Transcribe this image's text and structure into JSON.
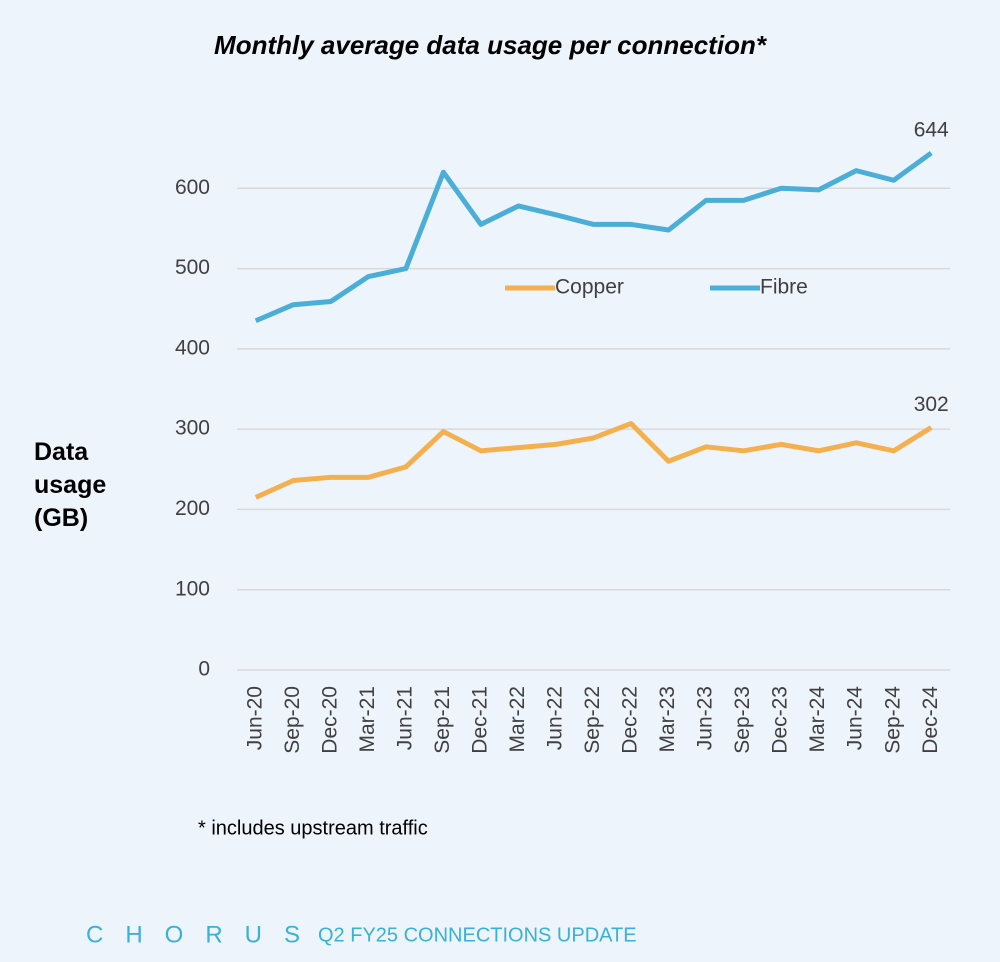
{
  "chart_data": {
    "type": "line",
    "title": "Monthly average data usage per connection*",
    "y_label": "Data usage (GB)",
    "categories": [
      "Jun-20",
      "Sep-20",
      "Dec-20",
      "Mar-21",
      "Jun-21",
      "Sep-21",
      "Dec-21",
      "Mar-22",
      "Jun-22",
      "Sep-22",
      "Dec-22",
      "Mar-23",
      "Jun-23",
      "Sep-23",
      "Dec-23",
      "Mar-24",
      "Jun-24",
      "Sep-24",
      "Dec-24"
    ],
    "series": [
      {
        "name": "Copper",
        "color": "#f4b04f",
        "values": [
          215,
          236,
          240,
          240,
          253,
          297,
          273,
          277,
          281,
          289,
          307,
          260,
          278,
          273,
          281,
          273,
          283,
          273,
          302
        ]
      },
      {
        "name": "Fibre",
        "color": "#4aaed9",
        "values": [
          435,
          455,
          459,
          490,
          500,
          620,
          555,
          578,
          567,
          555,
          555,
          548,
          585,
          585,
          600,
          598,
          622,
          610,
          644
        ]
      }
    ],
    "ylim": [
      0,
      700
    ],
    "yticks": [
      0,
      100,
      200,
      300,
      400,
      500,
      600
    ],
    "grid": true,
    "legend": "center",
    "footnote": "* includes upstream traffic"
  },
  "footer": {
    "brand": "CHORUS",
    "text": "Q2 FY25 CONNECTIONS UPDATE"
  }
}
